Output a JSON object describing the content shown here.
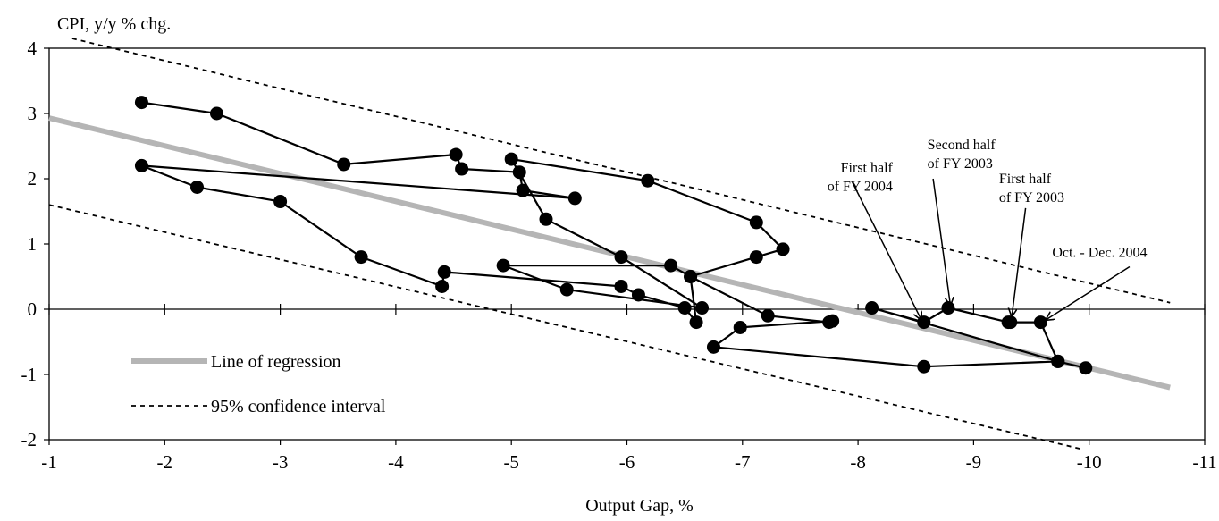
{
  "chart_data": {
    "type": "scatter",
    "title": "",
    "xlabel": "Output Gap, %",
    "ylabel": "CPI, y/y % chg.",
    "xlim": [
      -1,
      -11
    ],
    "ylim": [
      -2,
      4
    ],
    "x_reversed": true,
    "x_ticks": [
      -1,
      -2,
      -3,
      -4,
      -5,
      -6,
      -7,
      -8,
      -9,
      -10,
      -11
    ],
    "y_ticks": [
      -2,
      -1,
      0,
      1,
      2,
      3,
      4
    ],
    "x_tick_labels": [
      "-1",
      "-2",
      "-3",
      "-4",
      "-5",
      "-6",
      "-7",
      "-8",
      "-9",
      "-10",
      "-11"
    ],
    "y_tick_labels": [
      "-2",
      "-1",
      "0",
      "1",
      "2",
      "3",
      "4"
    ],
    "grid": false,
    "legend_position": "bottom-left",
    "series": [
      {
        "style": "connected-markers",
        "color": "#000000",
        "points": [
          [
            -1.8,
            3.17
          ],
          [
            -2.45,
            3.0
          ],
          [
            -3.55,
            2.22
          ],
          [
            -4.52,
            2.37
          ],
          [
            -4.57,
            2.15
          ],
          [
            -5.07,
            2.1
          ],
          [
            -5.1,
            1.82
          ],
          [
            -5.55,
            1.7
          ],
          [
            -1.8,
            2.2
          ],
          [
            -2.28,
            1.87
          ],
          [
            -3.0,
            1.65
          ],
          [
            -3.7,
            0.8
          ],
          [
            -4.4,
            0.35
          ],
          [
            -4.42,
            0.57
          ],
          [
            -5.95,
            0.35
          ],
          [
            -6.1,
            0.22
          ],
          [
            -6.5,
            0.02
          ],
          [
            -6.6,
            -0.2
          ],
          [
            -6.55,
            0.5
          ],
          [
            -7.12,
            0.8
          ],
          [
            -7.35,
            0.92
          ],
          [
            -7.12,
            1.33
          ],
          [
            -6.18,
            1.97
          ],
          [
            -5.0,
            2.3
          ],
          [
            -5.3,
            1.38
          ],
          [
            -5.95,
            0.8
          ],
          [
            -6.65,
            0.02
          ],
          [
            -5.48,
            0.3
          ],
          [
            -4.93,
            0.67
          ],
          [
            -6.38,
            0.67
          ],
          [
            -6.55,
            0.5
          ],
          [
            -7.22,
            -0.1
          ],
          [
            -7.75,
            -0.2
          ],
          [
            -7.78,
            -0.18
          ],
          [
            -6.98,
            -0.28
          ],
          [
            -6.75,
            -0.58
          ],
          [
            -8.57,
            -0.88
          ],
          [
            -9.73,
            -0.8
          ],
          [
            -9.58,
            -0.2
          ],
          [
            -9.32,
            -0.2
          ],
          [
            -9.3,
            -0.2
          ],
          [
            -8.78,
            0.02
          ],
          [
            -8.57,
            -0.2
          ],
          [
            -8.12,
            0.02
          ],
          [
            -9.73,
            -0.8
          ],
          [
            -9.97,
            -0.9
          ]
        ]
      }
    ],
    "regression_line": {
      "name": "Line of regression",
      "from": [
        -1,
        2.93
      ],
      "to": [
        -10.7,
        -1.2
      ],
      "color": "#b5b5b5"
    },
    "confidence_upper": {
      "name": "95% confidence interval",
      "from": [
        -1.2,
        4.15
      ],
      "to": [
        -10.7,
        0.1
      ]
    },
    "confidence_lower": {
      "from": [
        -1,
        1.6
      ],
      "to": [
        -9.95,
        -2.15
      ]
    },
    "annotations": [
      {
        "lines": [
          "First half",
          "of FY 2004"
        ],
        "text_at": [
          -8.3,
          2.1
        ],
        "arrow_from": [
          -7.95,
          1.95
        ],
        "arrow_to": [
          -8.55,
          -0.17
        ],
        "anchor": "end"
      },
      {
        "lines": [
          "Second half",
          "of FY 2003"
        ],
        "text_at": [
          -8.6,
          2.45
        ],
        "arrow_from": [
          -8.65,
          2.0
        ],
        "arrow_to": [
          -8.8,
          0.05
        ],
        "anchor": "start"
      },
      {
        "lines": [
          "First half",
          "of FY 2003"
        ],
        "text_at": [
          -9.22,
          1.93
        ],
        "arrow_from": [
          -9.45,
          1.55
        ],
        "arrow_to": [
          -9.33,
          -0.12
        ],
        "anchor": "start"
      },
      {
        "lines": [
          "Oct. - Dec. 2004"
        ],
        "text_at": [
          -9.68,
          0.8
        ],
        "arrow_from": [
          -10.35,
          0.65
        ],
        "arrow_to": [
          -9.62,
          -0.17
        ],
        "anchor": "start"
      }
    ]
  }
}
